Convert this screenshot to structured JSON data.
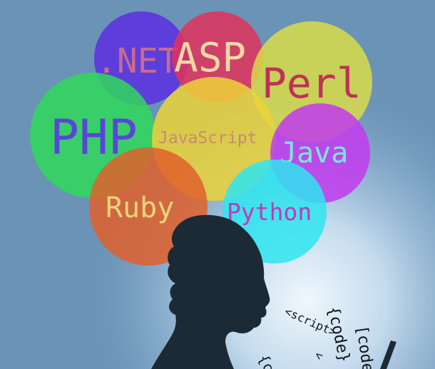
{
  "illustration": {
    "subject": "woman-silhouette-with-laptop",
    "colors": {
      "background": "#6a93b6",
      "glow": "#e3f0fa",
      "silhouette": "#1c2a36"
    }
  },
  "bubbles": [
    {
      "id": "net",
      "label": ".NET",
      "color": "#5a2fe0",
      "text_color": "#c96a8e"
    },
    {
      "id": "asp",
      "label": "ASP",
      "color": "#e0325a",
      "text_color": "#f1d9a8"
    },
    {
      "id": "perl",
      "label": "Perl",
      "color": "#d8dc48",
      "text_color": "#c0305a"
    },
    {
      "id": "php",
      "label": "PHP",
      "color": "#2fd85a",
      "text_color": "#5a46d6"
    },
    {
      "id": "javascript",
      "label": "JavaScript",
      "color": "#ecd43a",
      "text_color": "#c98a70"
    },
    {
      "id": "java",
      "label": "Java",
      "color": "#c23aee",
      "text_color": "#7be7d5"
    },
    {
      "id": "ruby",
      "label": "Ruby",
      "color": "#e0602c",
      "text_color": "#ecd47a"
    },
    {
      "id": "python",
      "label": "Python",
      "color": "#2ee5f0",
      "text_color": "#c03ab8"
    }
  ],
  "code_snippets": [
    {
      "id": "script",
      "text": "<script>"
    },
    {
      "id": "code-1",
      "text": "{code}"
    },
    {
      "id": "code-2",
      "text": "[code"
    },
    {
      "id": "code-3",
      "text": "{co"
    },
    {
      "id": "code-4",
      "text": "<"
    }
  ]
}
